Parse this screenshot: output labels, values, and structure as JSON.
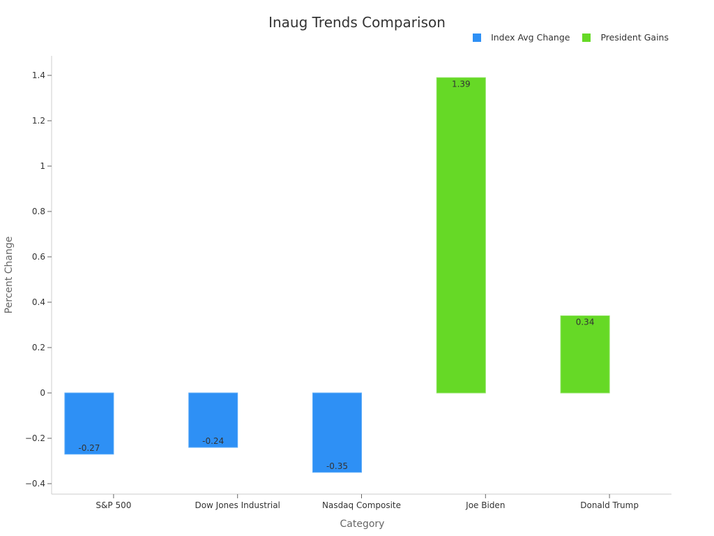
{
  "chart_data": {
    "type": "bar",
    "title": "Inaug Trends Comparison",
    "xlabel": "Category",
    "ylabel": "Percent Change",
    "categories": [
      "S&P 500",
      "Dow Jones Industrial",
      "Nasdaq Composite",
      "Joe Biden",
      "Donald Trump"
    ],
    "series": [
      {
        "name": "Index Avg Change",
        "color": "#2e90f5",
        "values": [
          -0.27,
          -0.24,
          -0.35,
          null,
          null
        ]
      },
      {
        "name": "President Gains",
        "color": "#66d926",
        "values": [
          null,
          null,
          null,
          1.39,
          0.34
        ]
      }
    ],
    "data_labels": [
      "-0.27",
      "-0.24",
      "-0.35",
      "1.39",
      "0.34"
    ],
    "yticks": [
      "1.4",
      "1.2",
      "1",
      "0.8",
      "0.6",
      "0.4",
      "0.2",
      "0",
      "−0.2",
      "−0.4"
    ],
    "ytick_values": [
      1.4,
      1.2,
      1.0,
      0.8,
      0.6,
      0.4,
      0.2,
      0,
      -0.2,
      -0.4
    ],
    "ylim": [
      -0.45,
      1.48
    ],
    "grid": false,
    "legend_position": "top-right"
  },
  "legend": [
    {
      "label": "Index Avg Change",
      "color": "#2e90f5"
    },
    {
      "label": "President Gains",
      "color": "#66d926"
    }
  ]
}
